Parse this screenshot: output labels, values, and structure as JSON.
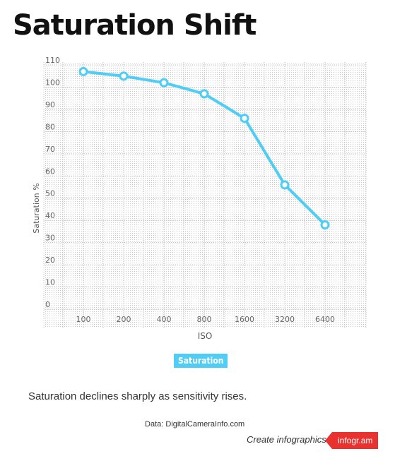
{
  "title": "Saturation Shift",
  "legend": {
    "label": "Saturation"
  },
  "caption": "Saturation declines sharply as sensitivity rises.",
  "source": "Data: DigitalCameraInfo.com",
  "footer": {
    "create_link": "Create infographics",
    "brand": "infogr.am"
  },
  "colors": {
    "series": "#4fcdf5",
    "brand": "#e8322f",
    "grid": "#bbbbbb"
  },
  "chart_data": {
    "type": "line",
    "categories": [
      "100",
      "200",
      "400",
      "800",
      "1600",
      "3200",
      "6400"
    ],
    "series": [
      {
        "name": "Saturation",
        "values": [
          107,
          105,
          102,
          97,
          86,
          56,
          38
        ]
      }
    ],
    "xlabel": "ISO",
    "ylabel": "Saturation %",
    "yticks": [
      0,
      10,
      20,
      30,
      40,
      50,
      60,
      70,
      80,
      90,
      100,
      110
    ],
    "ylim": [
      0,
      110
    ],
    "grid": true
  }
}
